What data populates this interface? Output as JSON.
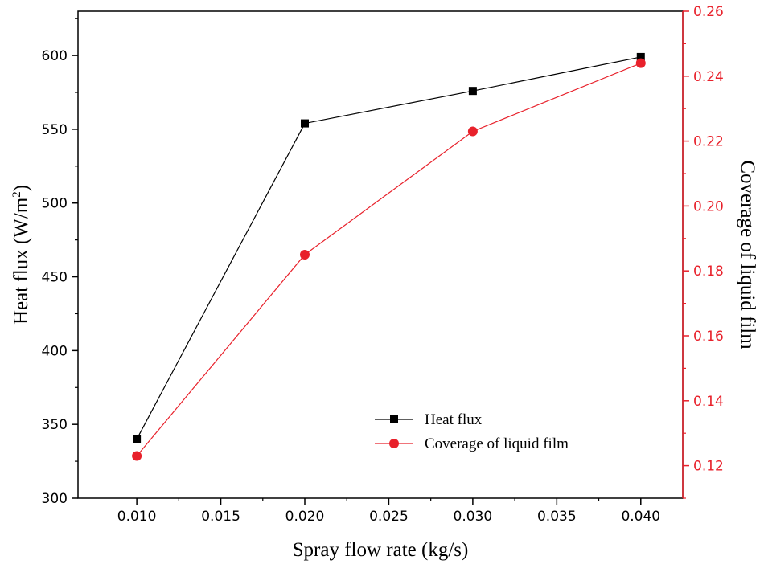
{
  "chart_data": {
    "type": "line",
    "x": [
      0.01,
      0.02,
      0.03,
      0.04
    ],
    "xlabel": "Spray flow rate (kg/s)",
    "xlim": [
      0.0065,
      0.0425
    ],
    "x_ticks": [
      "0.010",
      "0.015",
      "0.020",
      "0.025",
      "0.030",
      "0.035",
      "0.040"
    ],
    "x_tick_values": [
      0.01,
      0.015,
      0.02,
      0.025,
      0.03,
      0.035,
      0.04
    ],
    "y_left": {
      "label": "Heat flux (W/m",
      "label_sup": "2",
      "label_close": ")",
      "lim": [
        300,
        630
      ],
      "ticks": [
        "300",
        "350",
        "400",
        "450",
        "500",
        "550",
        "600"
      ],
      "tick_values": [
        300,
        350,
        400,
        450,
        500,
        550,
        600
      ]
    },
    "y_right": {
      "label": "Coverage of liquid film",
      "lim": [
        0.11,
        0.26
      ],
      "ticks": [
        "0.12",
        "0.14",
        "0.16",
        "0.18",
        "0.20",
        "0.22",
        "0.24",
        "0.26"
      ],
      "tick_values": [
        0.12,
        0.14,
        0.16,
        0.18,
        0.2,
        0.22,
        0.24,
        0.26
      ]
    },
    "series": [
      {
        "name": "Heat flux",
        "axis": "left",
        "marker": "square",
        "color": "#000000",
        "values": [
          340,
          554,
          576,
          599
        ]
      },
      {
        "name": "Coverage of liquid film",
        "axis": "right",
        "marker": "circle",
        "color": "#e8212b",
        "values": [
          0.123,
          0.185,
          0.223,
          0.244
        ]
      }
    ],
    "legend_position": "bottom-right",
    "grid": false
  }
}
